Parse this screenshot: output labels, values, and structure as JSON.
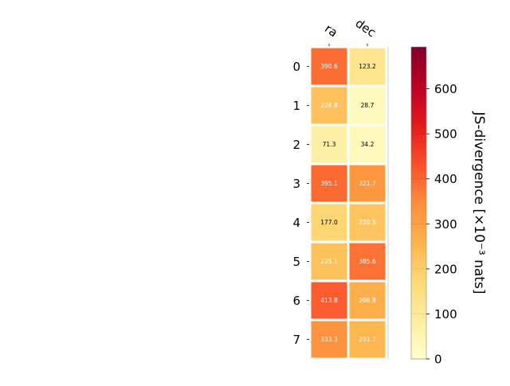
{
  "chart_data": {
    "type": "heatmap",
    "x_categories": [
      "ra",
      "dec"
    ],
    "y_categories": [
      "0",
      "1",
      "2",
      "3",
      "4",
      "5",
      "6",
      "7"
    ],
    "values": [
      [
        390.6,
        123.2
      ],
      [
        228.8,
        28.7
      ],
      [
        71.3,
        34.2
      ],
      [
        395.1,
        321.7
      ],
      [
        177.0,
        220.5
      ],
      [
        225.1,
        385.6
      ],
      [
        413.8,
        266.8
      ],
      [
        333.3,
        251.7
      ]
    ],
    "value_labels": [
      [
        "390.6",
        "123.2"
      ],
      [
        "228.8",
        "28.7"
      ],
      [
        "71.3",
        "34.2"
      ],
      [
        "395.1",
        "321.7"
      ],
      [
        "177.0",
        "220.5"
      ],
      [
        "225.1",
        "385.6"
      ],
      [
        "413.8",
        "266.8"
      ],
      [
        "333.3",
        "251.7"
      ]
    ],
    "colorbar": {
      "label": "JS-divergence [×10⁻³ nats]",
      "range": [
        0,
        693
      ],
      "ticks": [
        0,
        100,
        200,
        300,
        400,
        500,
        600
      ],
      "colormap": "YlOrRd",
      "colors": [
        "#ffffcc",
        "#ffeda0",
        "#fed976",
        "#feb24c",
        "#fd8d3c",
        "#fc4e2a",
        "#e31a1c",
        "#bd0026",
        "#800026"
      ]
    }
  }
}
